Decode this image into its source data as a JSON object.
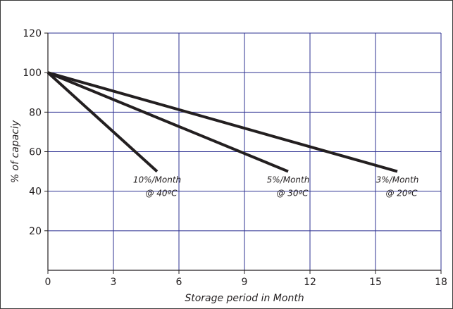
{
  "chart_data": {
    "type": "line",
    "title": "",
    "xlabel": "Storage period in Month",
    "ylabel": "% of capaciy",
    "xlim": [
      0,
      18
    ],
    "ylim": [
      0,
      120
    ],
    "x_ticks": [
      "0",
      "3",
      "6",
      "9",
      "12",
      "15",
      "18"
    ],
    "y_ticks": [
      "20",
      "40",
      "60",
      "80",
      "100",
      "120"
    ],
    "grid": true,
    "colors": {
      "grid": "#2e3192",
      "line": "#231f20",
      "axis": "#231f20"
    },
    "series": [
      {
        "x": [
          0,
          5
        ],
        "y": [
          100,
          50
        ],
        "annotation": [
          "10%/Month",
          "@ 40ºC"
        ]
      },
      {
        "x": [
          0,
          11
        ],
        "y": [
          100,
          50
        ],
        "annotation": [
          "5%/Month",
          "@ 30ºC"
        ]
      },
      {
        "x": [
          0,
          16
        ],
        "y": [
          100,
          50
        ],
        "annotation": [
          "3%/Month",
          "@ 20ºC"
        ]
      }
    ]
  }
}
